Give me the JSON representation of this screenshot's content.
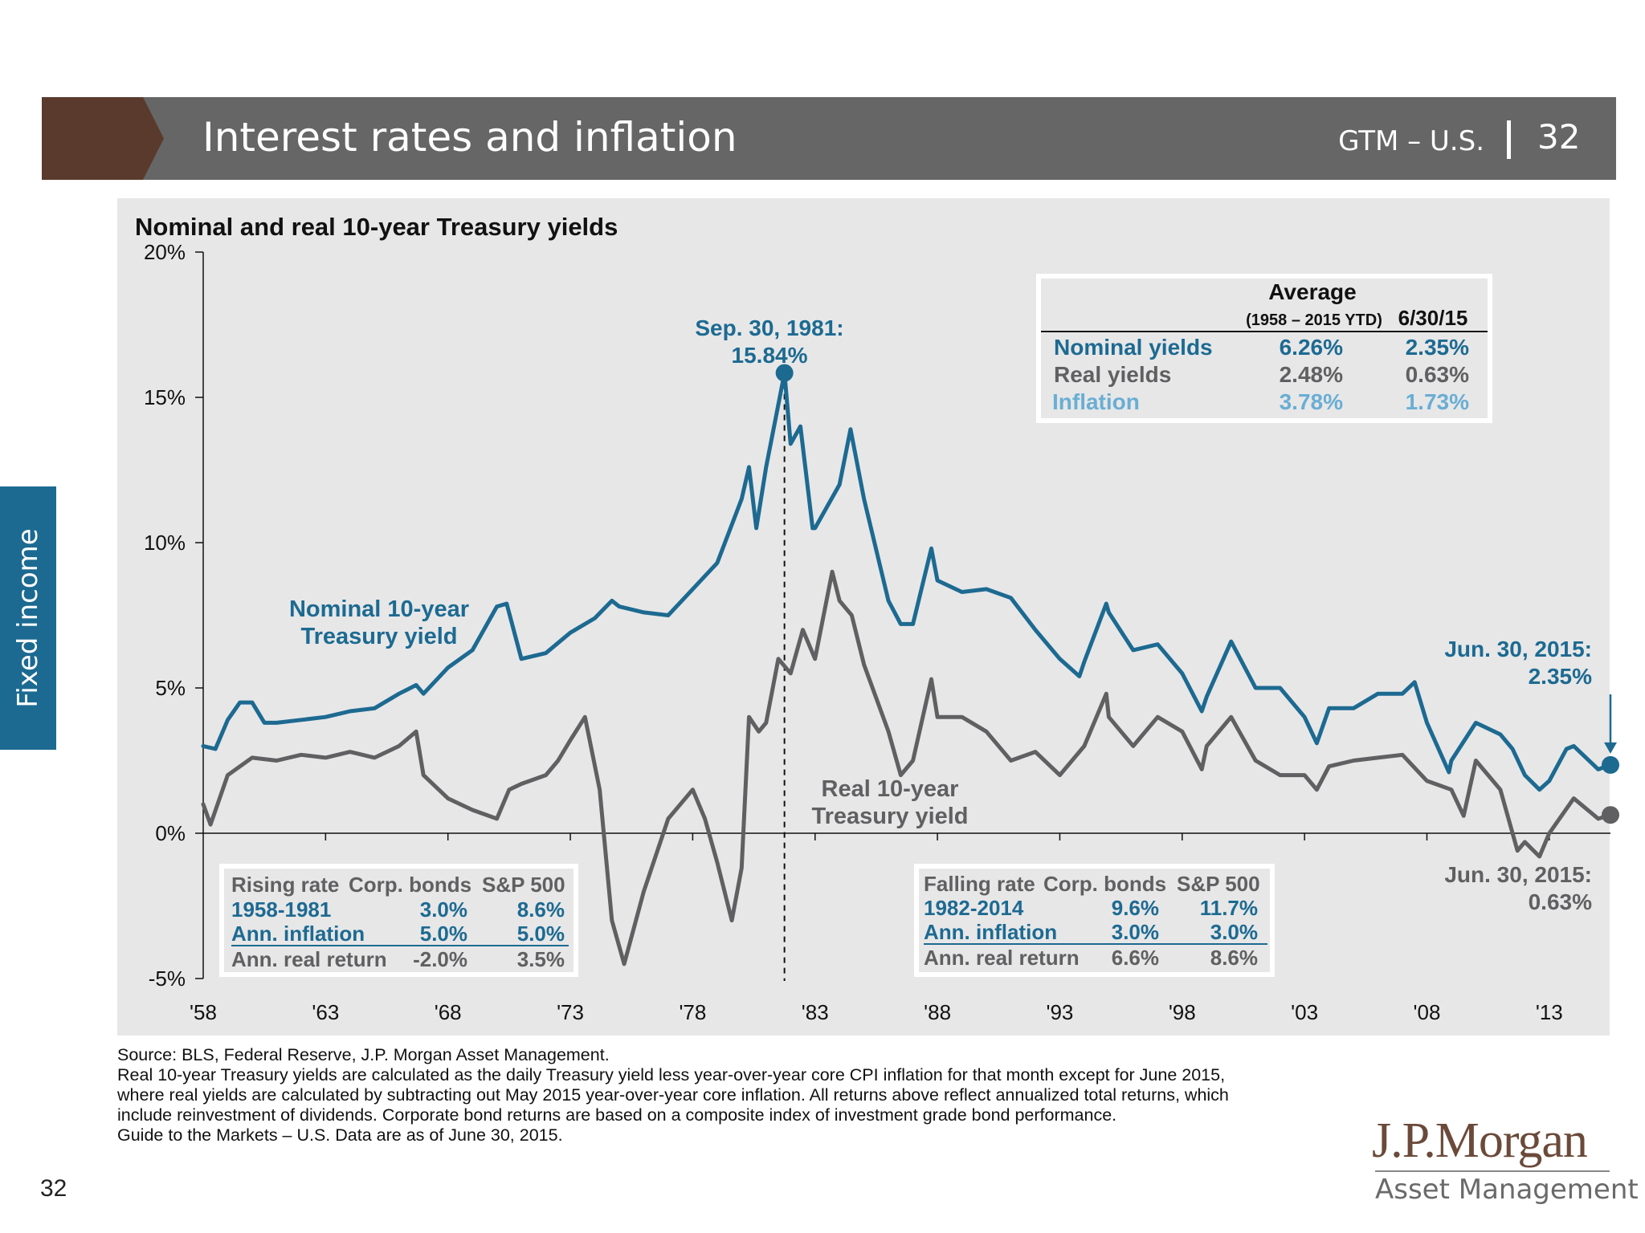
{
  "header": {
    "title": "Interest rates and inflation",
    "section": "GTM – U.S.",
    "page": "32"
  },
  "side_tab": {
    "label": "Fixed income"
  },
  "colors": {
    "nominal": "#1d6a91",
    "real": "#606062",
    "inflation": "#6aaed3",
    "brand": "#5a3a2c",
    "header": "#666666"
  },
  "chart_data": {
    "type": "line",
    "title": "Nominal and real 10-year Treasury yields",
    "xlabel": "",
    "ylabel": "",
    "xlim": [
      1958,
      2015.5
    ],
    "ylim": [
      -5,
      20
    ],
    "x_ticks": [
      "'58",
      "'63",
      "'68",
      "'73",
      "'78",
      "'83",
      "'88",
      "'93",
      "'98",
      "'03",
      "'08",
      "'13"
    ],
    "y_ticks": [
      "20%",
      "15%",
      "10%",
      "5%",
      "0%",
      "-5%"
    ],
    "grid": false,
    "series": [
      {
        "name": "Nominal 10-year Treasury yield",
        "x": [
          1958.0,
          1958.5,
          1959.0,
          1959.5,
          1960.0,
          1960.5,
          1961.0,
          1962.0,
          1963.0,
          1964.0,
          1965.0,
          1966.0,
          1966.7,
          1967.0,
          1968.0,
          1969.0,
          1970.0,
          1970.4,
          1971.0,
          1972.0,
          1973.0,
          1974.0,
          1974.7,
          1975.0,
          1976.0,
          1977.0,
          1978.0,
          1979.0,
          1980.0,
          1980.3,
          1980.6,
          1981.0,
          1981.75,
          1982.0,
          1982.4,
          1982.9,
          1983.0,
          1984.0,
          1984.45,
          1985.0,
          1986.0,
          1986.5,
          1987.0,
          1987.75,
          1988.0,
          1989.0,
          1990.0,
          1991.0,
          1992.0,
          1993.0,
          1993.8,
          1994.0,
          1994.9,
          1995.0,
          1996.0,
          1997.0,
          1998.0,
          1998.8,
          1999.0,
          2000.0,
          2001.0,
          2002.0,
          2003.0,
          2003.5,
          2004.0,
          2005.0,
          2006.0,
          2007.0,
          2007.5,
          2008.0,
          2008.9,
          2009.0,
          2010.0,
          2011.0,
          2011.5,
          2012.0,
          2012.6,
          2013.0,
          2013.7,
          2014.0,
          2015.0,
          2015.5
        ],
        "y": [
          3.0,
          2.9,
          3.9,
          4.5,
          4.5,
          3.8,
          3.8,
          3.9,
          4.0,
          4.2,
          4.3,
          4.8,
          5.1,
          4.8,
          5.7,
          6.3,
          7.8,
          7.9,
          6.0,
          6.2,
          6.9,
          7.4,
          8.0,
          7.8,
          7.6,
          7.5,
          8.4,
          9.3,
          11.5,
          12.6,
          10.5,
          12.6,
          15.84,
          13.4,
          14.0,
          10.5,
          10.5,
          12.0,
          13.9,
          11.5,
          8.0,
          7.2,
          7.2,
          9.8,
          8.7,
          8.3,
          8.4,
          8.1,
          7.0,
          6.0,
          5.4,
          5.9,
          7.9,
          7.6,
          6.3,
          6.5,
          5.5,
          4.2,
          4.7,
          6.6,
          5.0,
          5.0,
          4.0,
          3.1,
          4.3,
          4.3,
          4.8,
          4.8,
          5.2,
          3.8,
          2.1,
          2.5,
          3.8,
          3.4,
          2.9,
          2.0,
          1.5,
          1.8,
          2.9,
          3.0,
          2.2,
          2.35
        ]
      },
      {
        "name": "Real 10-year Treasury yield",
        "x": [
          1958.0,
          1958.3,
          1959.0,
          1960.0,
          1961.0,
          1962.0,
          1963.0,
          1964.0,
          1965.0,
          1966.0,
          1966.7,
          1967.0,
          1968.0,
          1969.0,
          1970.0,
          1970.5,
          1971.0,
          1972.0,
          1972.5,
          1973.0,
          1973.6,
          1974.2,
          1974.7,
          1975.2,
          1976.0,
          1977.0,
          1978.0,
          1978.5,
          1979.0,
          1979.6,
          1980.0,
          1980.3,
          1980.7,
          1981.0,
          1981.5,
          1982.0,
          1982.5,
          1983.0,
          1983.7,
          1984.0,
          1984.5,
          1985.0,
          1986.0,
          1986.5,
          1987.0,
          1987.75,
          1988.0,
          1989.0,
          1990.0,
          1991.0,
          1992.0,
          1993.0,
          1994.0,
          1994.9,
          1995.0,
          1996.0,
          1997.0,
          1998.0,
          1998.8,
          1999.0,
          2000.0,
          2001.0,
          2002.0,
          2003.0,
          2003.5,
          2004.0,
          2005.0,
          2006.0,
          2007.0,
          2008.0,
          2009.0,
          2009.5,
          2010.0,
          2010.5,
          2011.0,
          2011.7,
          2012.0,
          2012.6,
          2013.0,
          2014.0,
          2015.0,
          2015.5
        ],
        "y": [
          1.0,
          0.3,
          2.0,
          2.6,
          2.5,
          2.7,
          2.6,
          2.8,
          2.6,
          3.0,
          3.5,
          2.0,
          1.2,
          0.8,
          0.5,
          1.5,
          1.7,
          2.0,
          2.5,
          3.2,
          4.0,
          1.5,
          -3.0,
          -4.5,
          -2.0,
          0.5,
          1.5,
          0.5,
          -1.0,
          -3.0,
          -1.2,
          4.0,
          3.5,
          3.8,
          6.0,
          5.5,
          7.0,
          6.0,
          9.0,
          8.0,
          7.5,
          5.8,
          3.5,
          2.0,
          2.5,
          5.3,
          4.0,
          4.0,
          3.5,
          2.5,
          2.8,
          2.0,
          3.0,
          4.8,
          4.0,
          3.0,
          4.0,
          3.5,
          2.2,
          3.0,
          4.0,
          2.5,
          2.0,
          2.0,
          1.5,
          2.3,
          2.5,
          2.6,
          2.7,
          1.8,
          1.5,
          0.6,
          2.5,
          2.0,
          1.5,
          -0.6,
          -0.3,
          -0.8,
          0.0,
          1.2,
          0.5,
          0.63
        ]
      }
    ],
    "annotations": {
      "peak": {
        "x": 1981.75,
        "y": 15.84,
        "label_line1": "Sep. 30, 1981:",
        "label_line2": "15.84%"
      },
      "nominal_end": {
        "x": 2015.5,
        "y": 2.35,
        "label_line1": "Jun. 30, 2015:",
        "label_line2": "2.35%"
      },
      "real_end": {
        "x": 2015.5,
        "y": 0.63,
        "label_line1": "Jun. 30, 2015:",
        "label_line2": "0.63%"
      },
      "nominal_label": {
        "line1": "Nominal 10-year",
        "line2": "Treasury yield"
      },
      "real_label": {
        "line1": "Real 10-year",
        "line2": "Treasury yield"
      }
    },
    "average_table": {
      "header": "Average",
      "col1": "(1958 – 2015 YTD)",
      "col2": "6/30/15",
      "rows": [
        {
          "label": "Nominal yields",
          "avg": "6.26%",
          "current": "2.35%"
        },
        {
          "label": "Real yields",
          "avg": "2.48%",
          "current": "0.63%"
        },
        {
          "label": "Inflation",
          "avg": "3.78%",
          "current": "1.73%"
        }
      ]
    },
    "rising_table": {
      "headers": [
        "Rising rate",
        "Corp. bonds",
        "S&P 500"
      ],
      "rows": [
        [
          "1958-1981",
          "3.0%",
          "8.6%"
        ],
        [
          "Ann. inflation",
          "5.0%",
          "5.0%"
        ],
        [
          "Ann. real return",
          "-2.0%",
          "3.5%"
        ]
      ]
    },
    "falling_table": {
      "headers": [
        "Falling rate",
        "Corp. bonds",
        "S&P 500"
      ],
      "rows": [
        [
          "1982-2014",
          "9.6%",
          "11.7%"
        ],
        [
          "Ann. inflation",
          "3.0%",
          "3.0%"
        ],
        [
          "Ann. real return",
          "6.6%",
          "8.6%"
        ]
      ]
    }
  },
  "footnote": [
    "Source: BLS, Federal Reserve, J.P. Morgan Asset Management.",
    "Real 10-year Treasury yields are calculated as the daily Treasury yield less year-over-year core CPI inflation for that month except for June 2015,",
    "where real yields are calculated by subtracting out May 2015 year-over-year core inflation. All returns above reflect annualized total returns, which",
    "include reinvestment of dividends. Corporate bond returns are based on a composite index of investment grade bond performance.",
    "Guide to the Markets – U.S. Data are as of June 30, 2015."
  ],
  "page_number": "32",
  "logo": {
    "main": "J.P.Morgan",
    "sub": "Asset Management"
  }
}
